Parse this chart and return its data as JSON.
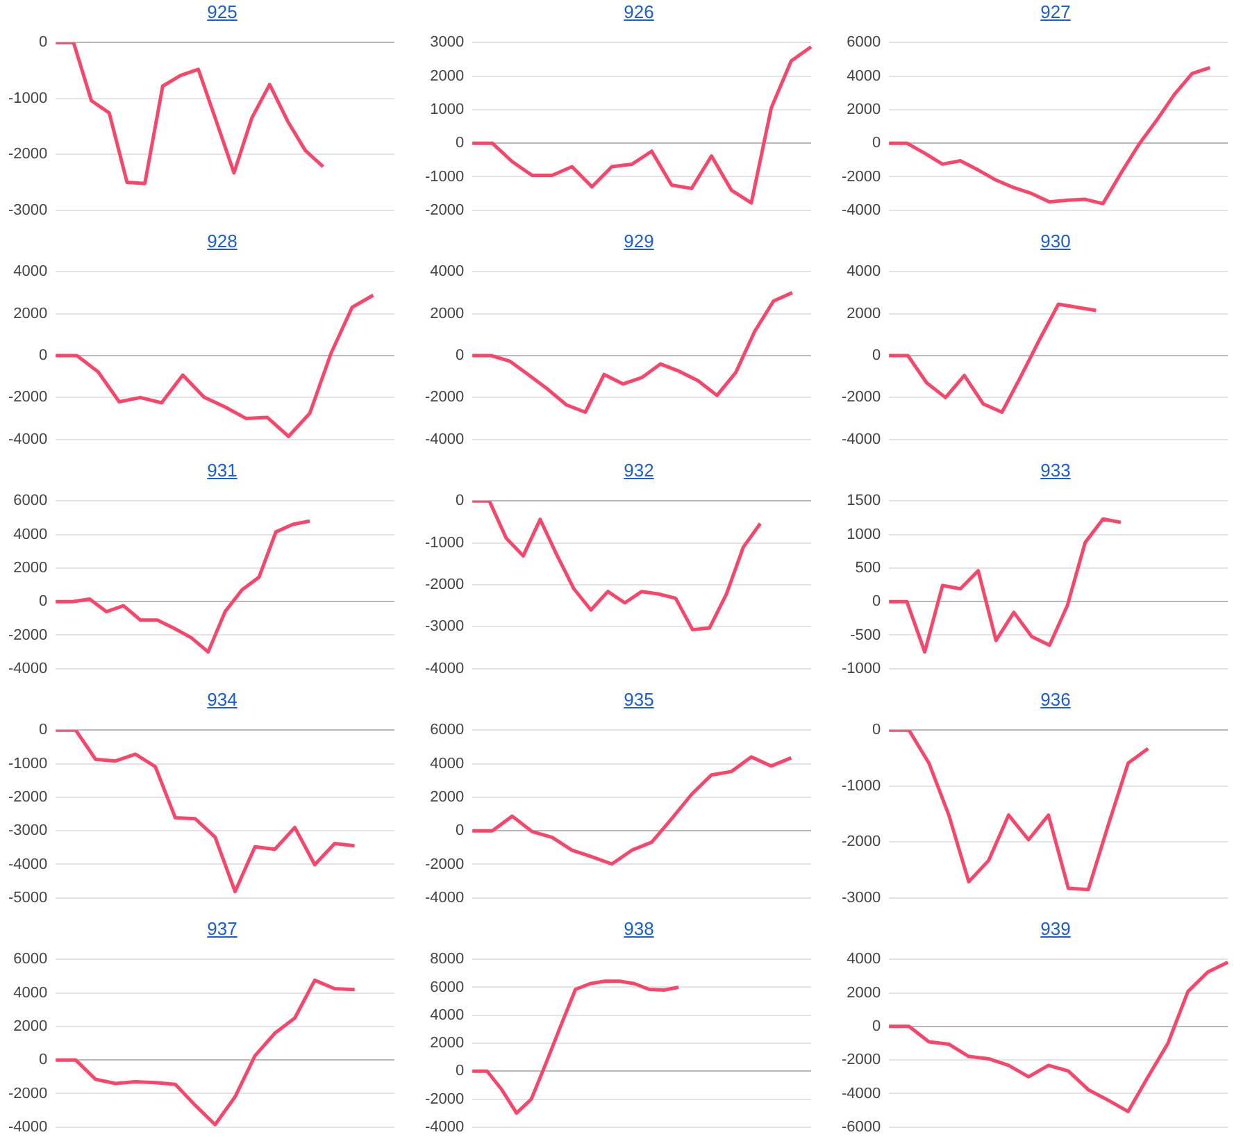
{
  "chart_data": [
    {
      "type": "line",
      "title": "925",
      "categories": [
        null,
        null,
        null,
        null,
        null,
        null,
        null,
        null,
        null,
        null,
        null,
        null,
        null,
        null,
        null,
        null,
        null,
        null,
        null,
        null
      ],
      "series": [
        {
          "color": "#f7466a",
          "values": [
            0,
            0,
            -1040,
            -1260,
            -2500,
            -2520,
            -780,
            -590,
            -480,
            -1400,
            -2330,
            -1350,
            -750,
            -1400,
            -1930,
            -2220,
            null,
            null,
            null,
            null
          ]
        }
      ],
      "ylim": [
        -3000,
        0
      ],
      "yticks": [
        -3000,
        -2000,
        -1000,
        0
      ],
      "grid": "y",
      "tick_labels": "y"
    },
    {
      "type": "line",
      "title": "926",
      "categories": [
        null,
        null,
        null,
        null,
        null,
        null,
        null,
        null,
        null,
        null,
        null,
        null,
        null,
        null,
        null,
        null,
        null,
        null
      ],
      "series": [
        {
          "color": "#f7466a",
          "values": [
            0,
            0,
            -550,
            -960,
            -960,
            -700,
            -1300,
            -700,
            -630,
            -240,
            -1250,
            -1350,
            -380,
            -1400,
            -1780,
            1050,
            2450,
            2870
          ]
        }
      ],
      "ylim": [
        -2000,
        3000
      ],
      "yticks": [
        -2000,
        -1000,
        0,
        1000,
        2000,
        3000
      ],
      "grid": "y",
      "tick_labels": "y"
    },
    {
      "type": "line",
      "title": "927",
      "categories": [
        null,
        null,
        null,
        null,
        null,
        null,
        null,
        null,
        null,
        null,
        null,
        null,
        null,
        null,
        null,
        null,
        null,
        null,
        null,
        null
      ],
      "series": [
        {
          "color": "#f7466a",
          "values": [
            0,
            0,
            -600,
            -1250,
            -1050,
            -1600,
            -2200,
            -2650,
            -3000,
            -3500,
            -3400,
            -3350,
            -3600,
            -1800,
            -100,
            1350,
            2900,
            4150,
            4500,
            null
          ]
        }
      ],
      "ylim": [
        -4000,
        6000
      ],
      "yticks": [
        -4000,
        -2000,
        0,
        2000,
        4000,
        6000
      ],
      "grid": "y",
      "tick_labels": "y"
    },
    {
      "type": "line",
      "title": "928",
      "categories": [
        null,
        null,
        null,
        null,
        null,
        null,
        null,
        null,
        null,
        null,
        null,
        null,
        null,
        null,
        null,
        null,
        null
      ],
      "series": [
        {
          "color": "#f7466a",
          "values": [
            0,
            0,
            -770,
            -2200,
            -2000,
            -2250,
            -930,
            -1980,
            -2450,
            -3000,
            -2950,
            -3850,
            -2750,
            100,
            2300,
            2880,
            null
          ]
        }
      ],
      "ylim": [
        -4000,
        4000
      ],
      "yticks": [
        -4000,
        -2000,
        0,
        2000,
        4000
      ],
      "grid": "y",
      "tick_labels": "y"
    },
    {
      "type": "line",
      "title": "929",
      "categories": [
        null,
        null,
        null,
        null,
        null,
        null,
        null,
        null,
        null,
        null,
        null,
        null,
        null,
        null,
        null,
        null,
        null,
        null,
        null
      ],
      "series": [
        {
          "color": "#f7466a",
          "values": [
            0,
            0,
            -270,
            -930,
            -1600,
            -2350,
            -2700,
            -900,
            -1350,
            -1050,
            -400,
            -750,
            -1200,
            -1900,
            -800,
            1150,
            2600,
            3000,
            null
          ]
        }
      ],
      "ylim": [
        -4000,
        4000
      ],
      "yticks": [
        -4000,
        -2000,
        0,
        2000,
        4000
      ],
      "grid": "y",
      "tick_labels": "y"
    },
    {
      "type": "line",
      "title": "930",
      "categories": [
        null,
        null,
        null,
        null,
        null,
        null,
        null,
        null,
        null,
        null,
        null,
        null,
        null,
        null,
        null,
        null,
        null,
        null,
        null
      ],
      "series": [
        {
          "color": "#f7466a",
          "values": [
            0,
            0,
            -1300,
            -2000,
            -950,
            -2300,
            -2700,
            -1000,
            770,
            2450,
            2300,
            2150,
            null,
            null,
            null,
            null,
            null,
            null,
            null
          ]
        }
      ],
      "ylim": [
        -4000,
        4000
      ],
      "yticks": [
        -4000,
        -2000,
        0,
        2000,
        4000
      ],
      "grid": "y",
      "tick_labels": "y"
    },
    {
      "type": "line",
      "title": "931",
      "categories": [
        null,
        null,
        null,
        null,
        null,
        null,
        null,
        null,
        null,
        null,
        null,
        null,
        null,
        null,
        null,
        null,
        null,
        null,
        null,
        null,
        null
      ],
      "series": [
        {
          "color": "#f7466a",
          "values": [
            0,
            0,
            150,
            -600,
            -250,
            -1100,
            -1100,
            -1600,
            -2150,
            -3000,
            -600,
            700,
            1450,
            4150,
            4600,
            4800,
            null,
            null,
            null,
            null,
            null
          ]
        }
      ],
      "ylim": [
        -4000,
        6000
      ],
      "yticks": [
        -4000,
        -2000,
        0,
        2000,
        4000,
        6000
      ],
      "grid": "y",
      "tick_labels": "y"
    },
    {
      "type": "line",
      "title": "932",
      "categories": [
        null,
        null,
        null,
        null,
        null,
        null,
        null,
        null,
        null,
        null,
        null,
        null,
        null,
        null,
        null,
        null,
        null,
        null,
        null,
        null,
        null
      ],
      "series": [
        {
          "color": "#f7466a",
          "values": [
            0,
            0,
            -890,
            -1310,
            -440,
            -1300,
            -2100,
            -2600,
            -2160,
            -2430,
            -2160,
            -2220,
            -2320,
            -3070,
            -3030,
            -2220,
            -1100,
            -540,
            null,
            null,
            null
          ]
        }
      ],
      "ylim": [
        -4000,
        0
      ],
      "yticks": [
        -4000,
        -3000,
        -2000,
        -1000,
        0
      ],
      "grid": "y",
      "tick_labels": "y"
    },
    {
      "type": "line",
      "title": "933",
      "categories": [
        null,
        null,
        null,
        null,
        null,
        null,
        null,
        null,
        null,
        null,
        null,
        null,
        null,
        null,
        null,
        null,
        null,
        null,
        null,
        null
      ],
      "series": [
        {
          "color": "#f7466a",
          "values": [
            0,
            0,
            -750,
            240,
            190,
            460,
            -580,
            -160,
            -520,
            -650,
            -60,
            880,
            1230,
            1180,
            null,
            null,
            null,
            null,
            null,
            null
          ]
        }
      ],
      "ylim": [
        -1000,
        1500
      ],
      "yticks": [
        -1000,
        -500,
        0,
        500,
        1000,
        1500
      ],
      "grid": "y",
      "tick_labels": "y"
    },
    {
      "type": "line",
      "title": "934",
      "categories": [
        null,
        null,
        null,
        null,
        null,
        null,
        null,
        null,
        null,
        null,
        null,
        null,
        null,
        null,
        null,
        null,
        null,
        null
      ],
      "series": [
        {
          "color": "#f7466a",
          "values": [
            0,
            0,
            -870,
            -920,
            -720,
            -1090,
            -2610,
            -2640,
            -3190,
            -4810,
            -3480,
            -3550,
            -2900,
            -4010,
            -3380,
            -3450,
            null,
            null
          ]
        }
      ],
      "ylim": [
        -5000,
        0
      ],
      "yticks": [
        -5000,
        -4000,
        -3000,
        -2000,
        -1000,
        0
      ],
      "grid": "y",
      "tick_labels": "y"
    },
    {
      "type": "line",
      "title": "935",
      "categories": [
        null,
        null,
        null,
        null,
        null,
        null,
        null,
        null,
        null,
        null,
        null,
        null,
        null,
        null,
        null,
        null,
        null,
        null
      ],
      "series": [
        {
          "color": "#f7466a",
          "values": [
            0,
            0,
            870,
            -50,
            -390,
            -1160,
            -1550,
            -1980,
            -1160,
            -680,
            720,
            2170,
            3330,
            3530,
            4400,
            3860,
            4350,
            null
          ]
        }
      ],
      "ylim": [
        -4000,
        6000
      ],
      "yticks": [
        -4000,
        -2000,
        0,
        2000,
        4000,
        6000
      ],
      "grid": "y",
      "tick_labels": "y"
    },
    {
      "type": "line",
      "title": "936",
      "categories": [
        null,
        null,
        null,
        null,
        null,
        null,
        null,
        null,
        null,
        null,
        null,
        null,
        null,
        null,
        null,
        null,
        null,
        null
      ],
      "series": [
        {
          "color": "#f7466a",
          "values": [
            0,
            0,
            -590,
            -1520,
            -2710,
            -2330,
            -1520,
            -1960,
            -1520,
            -2830,
            -2850,
            -1700,
            -590,
            -330,
            null,
            null,
            null,
            null
          ]
        }
      ],
      "ylim": [
        -3000,
        0
      ],
      "yticks": [
        -3000,
        -2000,
        -1000,
        0
      ],
      "grid": "y",
      "tick_labels": "y"
    },
    {
      "type": "line",
      "title": "937",
      "categories": [
        null,
        null,
        null,
        null,
        null,
        null,
        null,
        null,
        null,
        null,
        null,
        null,
        null,
        null,
        null,
        null,
        null,
        null
      ],
      "series": [
        {
          "color": "#f7466a",
          "values": [
            0,
            0,
            -1150,
            -1400,
            -1300,
            -1350,
            -1450,
            -2700,
            -3850,
            -2200,
            250,
            1600,
            2500,
            4750,
            4250,
            4200,
            null,
            null
          ]
        }
      ],
      "ylim": [
        -4000,
        6000
      ],
      "yticks": [
        -4000,
        -2000,
        0,
        2000,
        4000,
        6000
      ],
      "grid": "y",
      "tick_labels": "y"
    },
    {
      "type": "line",
      "title": "938",
      "categories": [
        null,
        null,
        null,
        null,
        null,
        null,
        null,
        null,
        null,
        null,
        null,
        null,
        null,
        null,
        null,
        null,
        null,
        null,
        null,
        null,
        null,
        null,
        null,
        null
      ],
      "series": [
        {
          "color": "#f7466a",
          "values": [
            0,
            0,
            -1330,
            -3000,
            -2000,
            580,
            3250,
            5850,
            6260,
            6430,
            6430,
            6260,
            5850,
            5800,
            6000,
            null,
            null,
            null,
            null,
            null,
            null,
            null,
            null,
            null
          ]
        }
      ],
      "ylim": [
        -4000,
        8000
      ],
      "yticks": [
        -4000,
        -2000,
        0,
        2000,
        4000,
        6000,
        8000
      ],
      "grid": "y",
      "tick_labels": "y"
    },
    {
      "type": "line",
      "title": "939",
      "categories": [
        null,
        null,
        null,
        null,
        null,
        null,
        null,
        null,
        null,
        null,
        null,
        null,
        null,
        null,
        null,
        null,
        null,
        null
      ],
      "series": [
        {
          "color": "#f7466a",
          "values": [
            0,
            0,
            -920,
            -1060,
            -1790,
            -1930,
            -2320,
            -3000,
            -2320,
            -2660,
            -3770,
            -4400,
            -5070,
            -3000,
            -1000,
            2080,
            3240,
            3820
          ]
        }
      ],
      "ylim": [
        -6000,
        4000
      ],
      "yticks": [
        -6000,
        -4000,
        -2000,
        0,
        2000,
        4000
      ],
      "grid": "y",
      "tick_labels": "y"
    }
  ]
}
